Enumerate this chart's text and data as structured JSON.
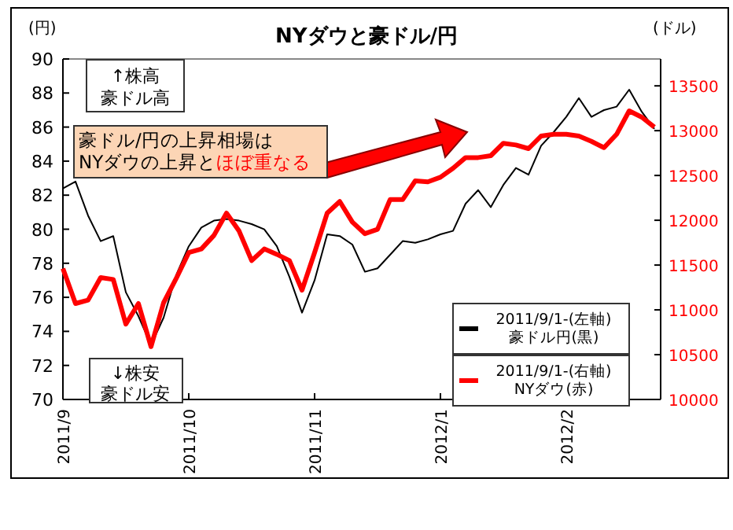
{
  "chart_data": {
    "type": "line",
    "title": "NYダウと豪ドル/円",
    "ylabel": "(円)",
    "y2label": "(ドル)",
    "categories": [
      "2011/9",
      null,
      null,
      null,
      null,
      null,
      null,
      null,
      null,
      null,
      "2011/10",
      null,
      null,
      null,
      null,
      null,
      null,
      null,
      null,
      null,
      "2011/11",
      null,
      null,
      null,
      null,
      null,
      null,
      null,
      null,
      null,
      "2012/1",
      null,
      null,
      null,
      null,
      null,
      null,
      null,
      null,
      null,
      "2012/2",
      null,
      null,
      null,
      null,
      null,
      null,
      null
    ],
    "ylim": [
      70,
      90
    ],
    "yticks": [
      70,
      72,
      74,
      76,
      78,
      80,
      82,
      84,
      86,
      88,
      90
    ],
    "y2lim": [
      10000,
      13800
    ],
    "y2ticks": [
      10000,
      10500,
      11000,
      11500,
      12000,
      12500,
      13000,
      13500
    ],
    "legend": "bottom right",
    "grid": false,
    "annotations": [
      "↑株高",
      "豪ドル高",
      "豪ドル/円の上昇相場は",
      "NYダウの上昇と",
      "ほぼ重なる",
      "↓株安",
      "豪ドル安"
    ],
    "series": [
      {
        "name": "2011/9/1-(左軸)\n豪ドル円(黒)",
        "color": "#000000",
        "axis": "y",
        "values": [
          82.4,
          82.8,
          80.8,
          79.3,
          79.6,
          76.3,
          74.9,
          73.2,
          74.8,
          77.3,
          79.0,
          80.1,
          80.5,
          80.6,
          80.5,
          80.3,
          80.0,
          79.0,
          77.2,
          75.1,
          77.0,
          79.7,
          79.6,
          79.1,
          77.5,
          77.7,
          78.5,
          79.3,
          79.2,
          79.4,
          79.7,
          79.9,
          81.5,
          82.3,
          81.3,
          82.6,
          83.6,
          83.2,
          84.9,
          85.7,
          86.6,
          87.7,
          86.6,
          87.0,
          87.2,
          88.2,
          86.9,
          85.9
        ]
      },
      {
        "name": "2011/9/1-(右軸)\nNYダウ(赤)",
        "color": "#ff0000",
        "axis": "y2",
        "values": [
          11460,
          11070,
          11110,
          11360,
          11340,
          10840,
          11070,
          10590,
          11080,
          11350,
          11640,
          11680,
          11830,
          12080,
          11880,
          11550,
          11680,
          11620,
          11550,
          11220,
          11640,
          12080,
          12210,
          11980,
          11850,
          11900,
          12230,
          12230,
          12440,
          12430,
          12480,
          12580,
          12700,
          12700,
          12720,
          12860,
          12840,
          12800,
          12940,
          12960,
          12960,
          12940,
          12880,
          12810,
          12960,
          13220,
          13150,
          13040
        ]
      }
    ]
  }
}
